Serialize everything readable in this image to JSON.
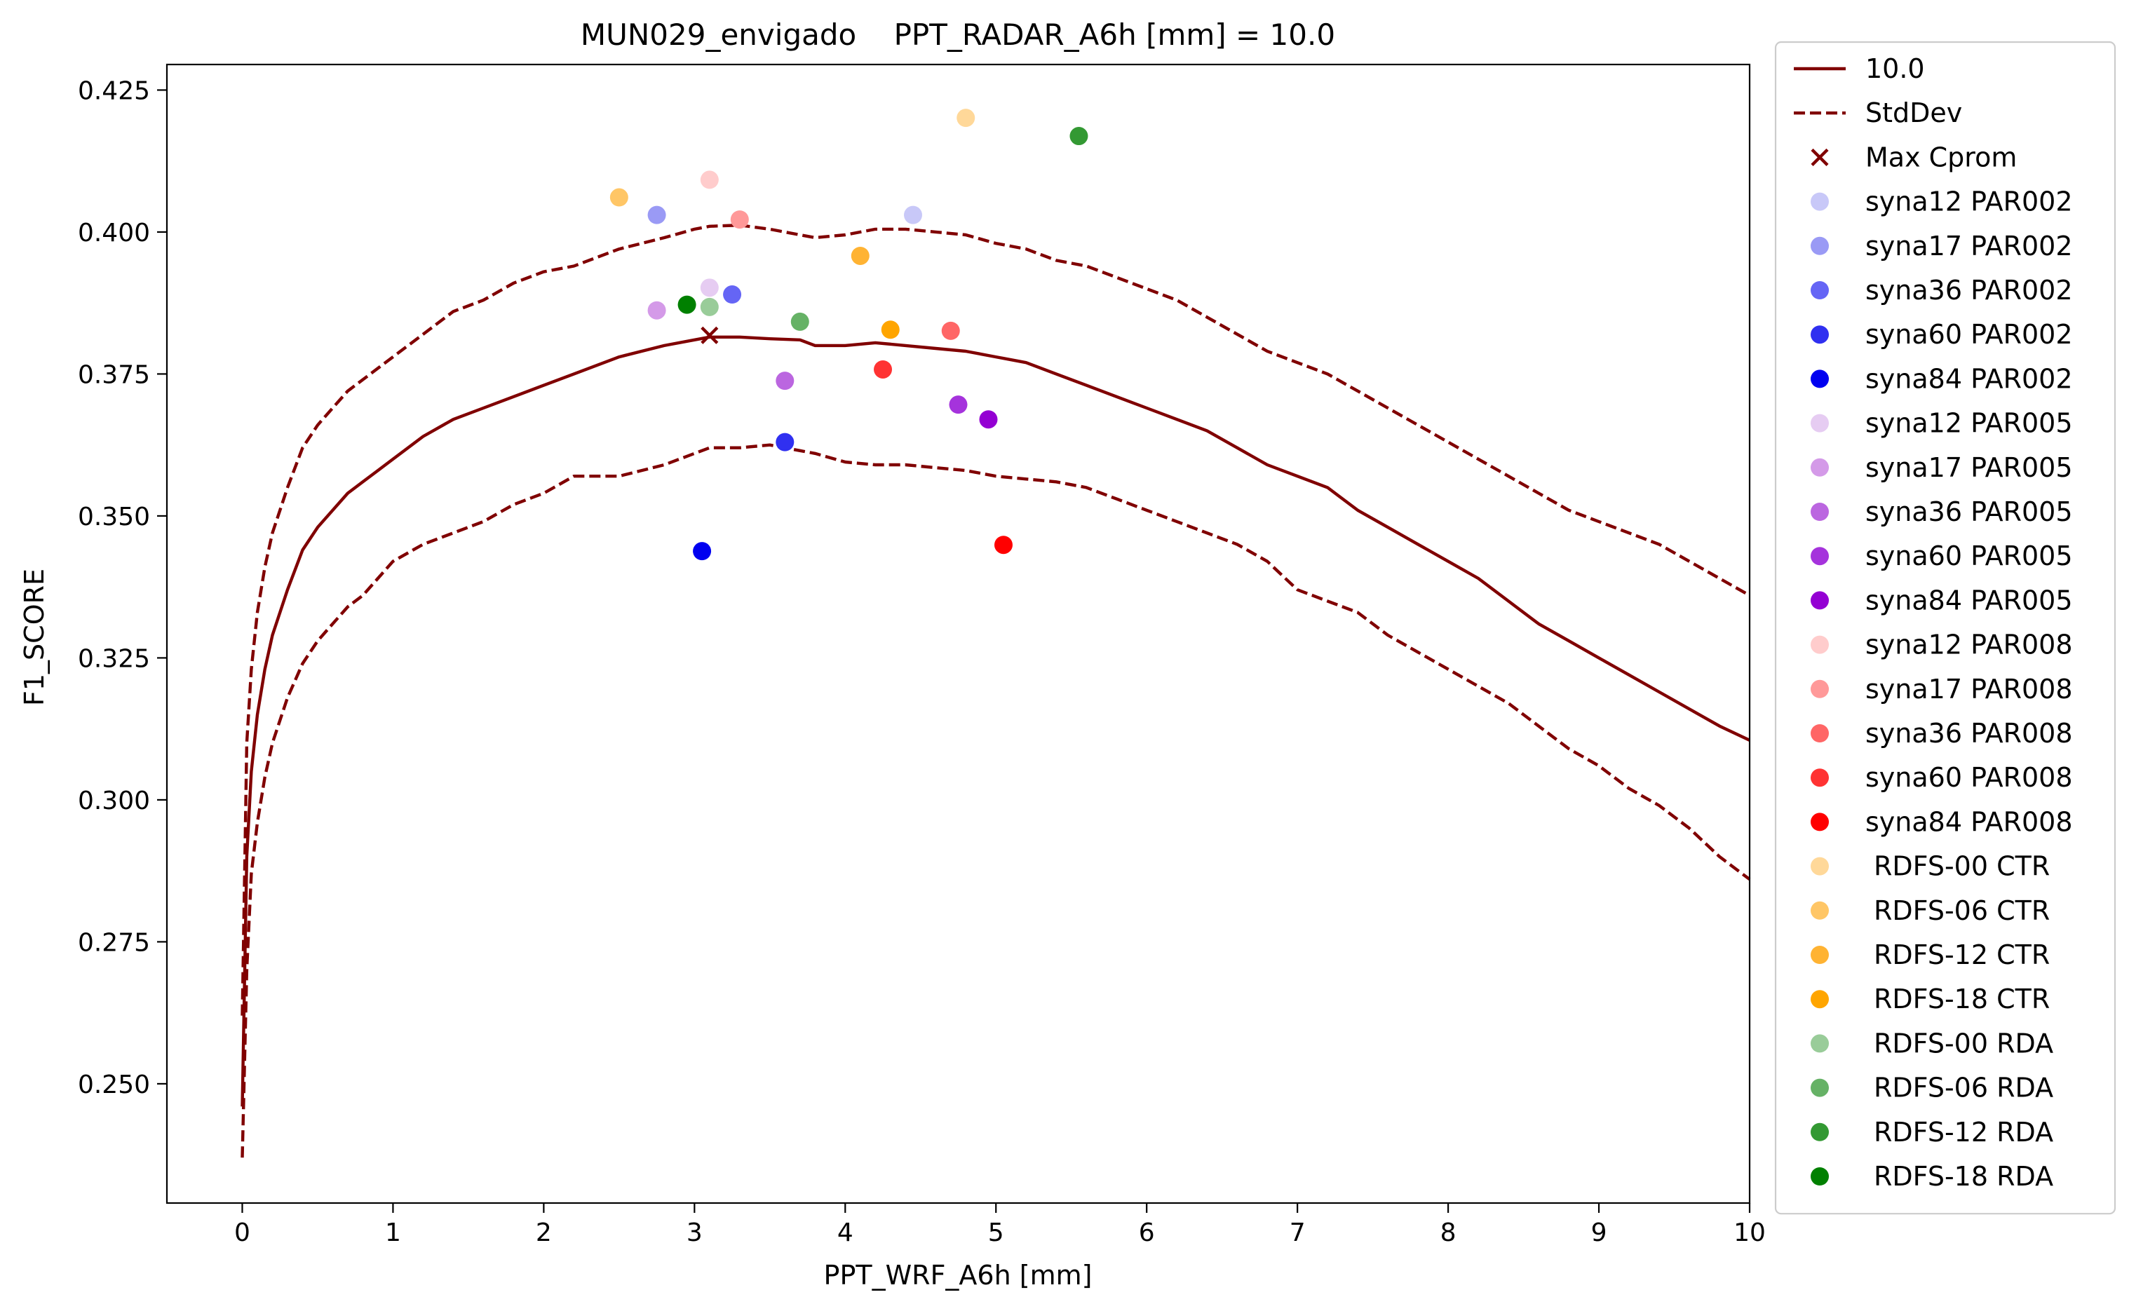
{
  "chart_data": {
    "type": "scatter",
    "title": "MUN029_envigado    PPT_RADAR_A6h [mm] = 10.0",
    "xlabel": "PPT_WRF_A6h [mm]",
    "ylabel": "F1_SCORE",
    "xlim": [
      -0.5,
      10
    ],
    "ylim": [
      0.229,
      0.4295
    ],
    "xticks": [
      0,
      1,
      2,
      3,
      4,
      5,
      6,
      7,
      8,
      9,
      10
    ],
    "yticks": [
      0.25,
      0.275,
      0.3,
      0.325,
      0.35,
      0.375,
      0.4,
      0.425
    ],
    "ytick_labels": [
      "0.250",
      "0.275",
      "0.300",
      "0.325",
      "0.350",
      "0.375",
      "0.400",
      "0.425"
    ],
    "grid": false,
    "legend_position": "outside right",
    "line_color": "#800000",
    "curves": [
      {
        "name": "10.0",
        "style": "solid",
        "x": [
          0,
          0.03,
          0.06,
          0.1,
          0.15,
          0.2,
          0.3,
          0.4,
          0.5,
          0.6,
          0.7,
          0.8,
          0.9,
          1.0,
          1.2,
          1.4,
          1.6,
          1.8,
          2.0,
          2.2,
          2.5,
          2.8,
          3.0,
          3.1,
          3.3,
          3.5,
          3.7,
          3.8,
          4.0,
          4.2,
          4.4,
          4.6,
          4.8,
          5.0,
          5.2,
          5.4,
          5.6,
          5.8,
          6.0,
          6.2,
          6.4,
          6.6,
          6.8,
          7.0,
          7.2,
          7.4,
          7.6,
          7.8,
          8.0,
          8.2,
          8.4,
          8.6,
          8.8,
          9.0,
          9.2,
          9.4,
          9.6,
          9.8,
          10.0
        ],
        "y": [
          0.246,
          0.29,
          0.305,
          0.315,
          0.323,
          0.329,
          0.337,
          0.344,
          0.348,
          0.351,
          0.354,
          0.356,
          0.358,
          0.36,
          0.364,
          0.367,
          0.369,
          0.371,
          0.373,
          0.375,
          0.378,
          0.38,
          0.381,
          0.3815,
          0.3815,
          0.3812,
          0.381,
          0.38,
          0.38,
          0.3805,
          0.38,
          0.3795,
          0.379,
          0.378,
          0.377,
          0.375,
          0.373,
          0.371,
          0.369,
          0.367,
          0.365,
          0.362,
          0.359,
          0.357,
          0.355,
          0.351,
          0.348,
          0.345,
          0.342,
          0.339,
          0.335,
          0.331,
          0.328,
          0.325,
          0.322,
          0.319,
          0.316,
          0.313,
          0.3105
        ]
      },
      {
        "name": "StdDev",
        "style": "dashed",
        "x": [
          0,
          0.03,
          0.06,
          0.1,
          0.15,
          0.2,
          0.3,
          0.4,
          0.5,
          0.6,
          0.7,
          0.8,
          0.9,
          1.0,
          1.2,
          1.4,
          1.6,
          1.8,
          2.0,
          2.2,
          2.5,
          2.8,
          3.0,
          3.1,
          3.3,
          3.5,
          3.7,
          3.8,
          4.0,
          4.2,
          4.4,
          4.6,
          4.8,
          5.0,
          5.2,
          5.4,
          5.6,
          5.8,
          6.0,
          6.2,
          6.4,
          6.6,
          6.8,
          7.0,
          7.2,
          7.4,
          7.6,
          7.8,
          8.0,
          8.2,
          8.4,
          8.6,
          8.8,
          9.0,
          9.2,
          9.4,
          9.6,
          9.8,
          10.0
        ],
        "y": [
          0.262,
          0.31,
          0.323,
          0.333,
          0.341,
          0.347,
          0.355,
          0.362,
          0.366,
          0.369,
          0.372,
          0.374,
          0.376,
          0.378,
          0.382,
          0.386,
          0.388,
          0.391,
          0.393,
          0.394,
          0.397,
          0.399,
          0.4005,
          0.401,
          0.4012,
          0.4005,
          0.3995,
          0.399,
          0.3995,
          0.4005,
          0.4005,
          0.4,
          0.3995,
          0.398,
          0.397,
          0.395,
          0.394,
          0.392,
          0.39,
          0.388,
          0.385,
          0.382,
          0.379,
          0.377,
          0.375,
          0.372,
          0.369,
          0.366,
          0.363,
          0.36,
          0.357,
          0.354,
          0.351,
          0.349,
          0.347,
          0.345,
          0.342,
          0.339,
          0.336
        ]
      },
      {
        "name": "",
        "style": "dashed",
        "x": [
          0,
          0.03,
          0.06,
          0.1,
          0.15,
          0.2,
          0.3,
          0.4,
          0.5,
          0.6,
          0.7,
          0.8,
          0.9,
          1.0,
          1.2,
          1.4,
          1.6,
          1.8,
          2.0,
          2.2,
          2.5,
          2.8,
          3.0,
          3.1,
          3.3,
          3.5,
          3.7,
          3.8,
          4.0,
          4.2,
          4.4,
          4.6,
          4.8,
          5.0,
          5.2,
          5.4,
          5.6,
          5.8,
          6.0,
          6.2,
          6.4,
          6.6,
          6.8,
          7.0,
          7.2,
          7.4,
          7.6,
          7.8,
          8.0,
          8.2,
          8.4,
          8.6,
          8.8,
          9.0,
          9.2,
          9.4,
          9.6,
          9.8,
          10.0
        ],
        "y": [
          0.237,
          0.27,
          0.287,
          0.296,
          0.304,
          0.31,
          0.318,
          0.324,
          0.328,
          0.331,
          0.334,
          0.336,
          0.339,
          0.342,
          0.345,
          0.347,
          0.349,
          0.352,
          0.354,
          0.357,
          0.357,
          0.359,
          0.361,
          0.362,
          0.362,
          0.3625,
          0.3615,
          0.361,
          0.3595,
          0.359,
          0.359,
          0.3585,
          0.358,
          0.357,
          0.3565,
          0.356,
          0.355,
          0.353,
          0.351,
          0.349,
          0.347,
          0.345,
          0.342,
          0.337,
          0.335,
          0.333,
          0.329,
          0.326,
          0.323,
          0.32,
          0.317,
          0.313,
          0.309,
          0.306,
          0.302,
          0.299,
          0.295,
          0.29,
          0.286
        ]
      }
    ],
    "max_point": {
      "name": "Max Cprom",
      "x": 3.1,
      "y": 0.3818
    },
    "series": [
      {
        "name": "syna12 PAR002",
        "color": "#c8c8f8",
        "x": 4.45,
        "y": 0.403
      },
      {
        "name": "syna17 PAR002",
        "color": "#9a9af5",
        "x": 2.75,
        "y": 0.403
      },
      {
        "name": "syna36 PAR002",
        "color": "#6565f5",
        "x": 3.25,
        "y": 0.389
      },
      {
        "name": "syna60 PAR002",
        "color": "#3030f0",
        "x": 3.6,
        "y": 0.363
      },
      {
        "name": "syna84 PAR002",
        "color": "#0000f0",
        "x": 3.05,
        "y": 0.3438
      },
      {
        "name": "syna12 PAR005",
        "color": "#e6ccf2",
        "x": 3.1,
        "y": 0.3902
      },
      {
        "name": "syna17 PAR005",
        "color": "#d49ae8",
        "x": 2.75,
        "y": 0.3862
      },
      {
        "name": "syna36 PAR005",
        "color": "#bb66e0",
        "x": 3.6,
        "y": 0.3738
      },
      {
        "name": "syna60 PAR005",
        "color": "#a533dc",
        "x": 4.75,
        "y": 0.3696
      },
      {
        "name": "syna84 PAR005",
        "color": "#9400d3",
        "x": 4.95,
        "y": 0.367
      },
      {
        "name": "syna12 PAR008",
        "color": "#ffcccc",
        "x": 3.1,
        "y": 0.4092
      },
      {
        "name": "syna17 PAR008",
        "color": "#ff9999",
        "x": 3.3,
        "y": 0.4022
      },
      {
        "name": "syna36 PAR008",
        "color": "#ff6666",
        "x": 4.7,
        "y": 0.3826
      },
      {
        "name": "syna60 PAR008",
        "color": "#ff3333",
        "x": 4.25,
        "y": 0.3758
      },
      {
        "name": "syna84 PAR008",
        "color": "#ff0000",
        "x": 5.05,
        "y": 0.3449
      },
      {
        "name": "RDFS-00 CTR",
        "color": "#ffd899",
        "x": 4.8,
        "y": 0.4201
      },
      {
        "name": "RDFS-06 CTR",
        "color": "#ffc666",
        "x": 2.5,
        "y": 0.4061
      },
      {
        "name": "RDFS-12 CTR",
        "color": "#ffb333",
        "x": 4.1,
        "y": 0.3958
      },
      {
        "name": "RDFS-18 CTR",
        "color": "#ffa500",
        "x": 4.3,
        "y": 0.3828
      },
      {
        "name": "RDFS-00 RDA",
        "color": "#99cc99",
        "x": 3.1,
        "y": 0.3868
      },
      {
        "name": "RDFS-06 RDA",
        "color": "#66b266",
        "x": 3.7,
        "y": 0.3842
      },
      {
        "name": "RDFS-12 RDA",
        "color": "#339933",
        "x": 5.55,
        "y": 0.4169
      },
      {
        "name": "RDFS-18 RDA",
        "color": "#008000",
        "x": 2.95,
        "y": 0.3872
      }
    ]
  }
}
